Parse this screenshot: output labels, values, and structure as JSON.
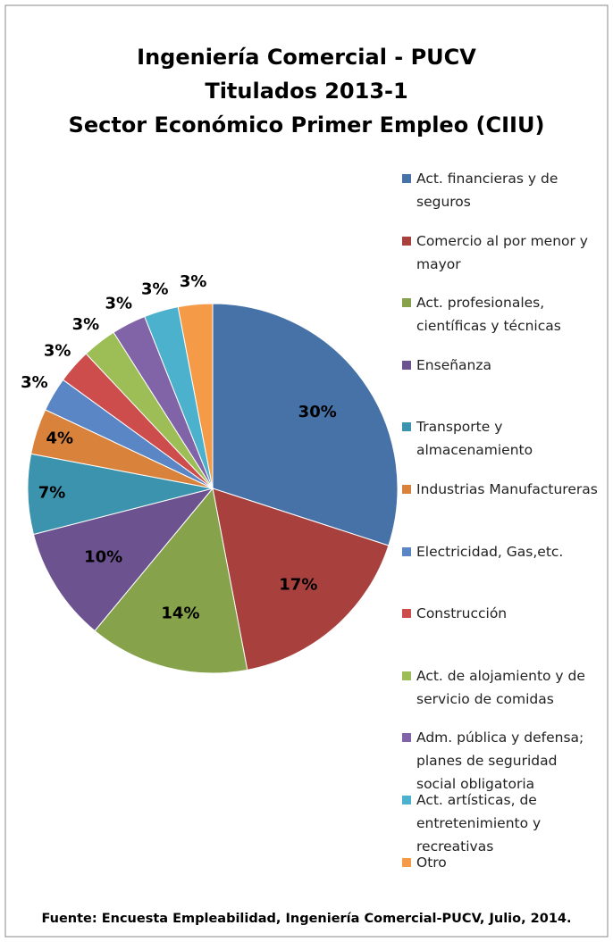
{
  "chart_data": {
    "type": "pie",
    "title": [
      "Ingeniería Comercial - PUCV",
      "Titulados 2013-1",
      "Sector Económico Primer Empleo (CIIU)"
    ],
    "categories": [
      "Act. financieras y de seguros",
      "Comercio al por menor y mayor",
      "Act. profesionales, científicas y técnicas",
      "Enseñanza",
      "Transporte y almacenamiento",
      "Industrias Manufactureras",
      "Electricidad, Gas,etc.",
      "Construcción",
      "Act. de alojamiento y de servicio de comidas",
      "Adm. pública y defensa; planes de seguridad social obligatoria",
      "Act. artísticas, de entretenimiento y recreativas",
      "Otro"
    ],
    "values": [
      30,
      17,
      14,
      10,
      7,
      4,
      3,
      3,
      3,
      3,
      3,
      3
    ],
    "value_labels": [
      "30%",
      "17%",
      "14%",
      "10%",
      "7%",
      "4%",
      "3%",
      "3%",
      "3%",
      "3%",
      "3%",
      "3%"
    ],
    "colors": [
      "#4672a8",
      "#a8403e",
      "#86a24a",
      "#6d5290",
      "#3b93ad",
      "#d9823b",
      "#5a86c5",
      "#cc4d4b",
      "#9dbe56",
      "#8163a7",
      "#4bb1cc",
      "#f59a47"
    ],
    "legend": "right",
    "source": "Fuente: Encuesta Empleabilidad, Ingeniería Comercial-PUCV, Julio, 2014."
  }
}
